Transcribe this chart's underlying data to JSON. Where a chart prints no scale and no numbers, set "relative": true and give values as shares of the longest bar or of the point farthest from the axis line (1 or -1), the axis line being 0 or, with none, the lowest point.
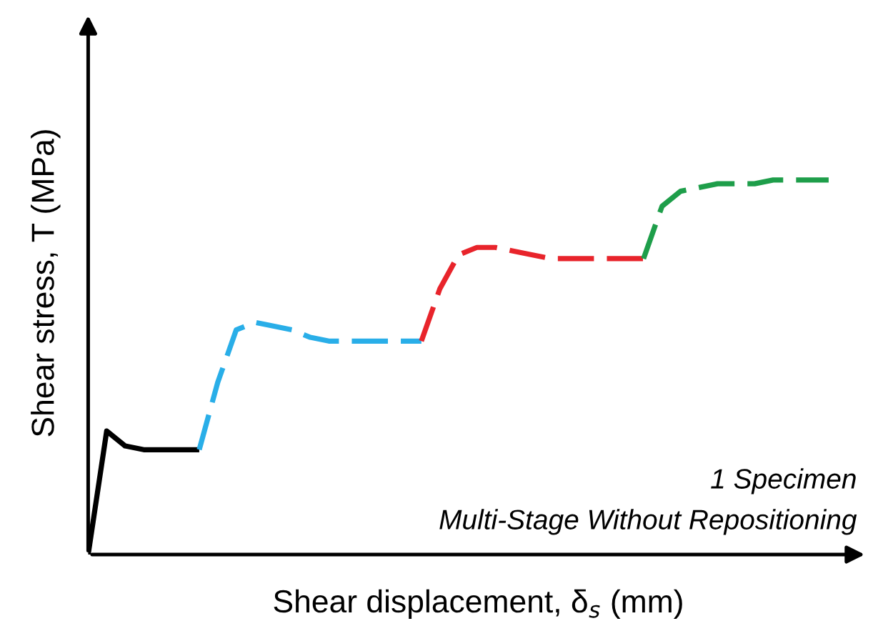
{
  "chart_data": {
    "type": "line",
    "relative": true,
    "xlabel": "Shear displacement, δ$_{s}$ (mm)",
    "ylabel": "Shear stress, T (MPa)",
    "annotations": [
      "1 Specimen",
      "Multi-Stage Without Repositioning"
    ],
    "marker": "none",
    "categories": [
      null,
      null,
      null,
      null,
      null,
      null,
      null,
      null,
      null,
      null,
      null,
      null,
      null,
      null,
      null,
      null,
      null,
      null,
      null,
      null,
      null,
      null,
      null,
      null,
      null,
      null,
      null,
      null,
      null,
      null,
      null,
      null,
      null,
      null,
      null,
      null,
      null,
      null,
      null,
      null,
      null
    ],
    "series": [
      {
        "color": "#000000",
        "line_style": "solid",
        "values": [
          0,
          0.33,
          0.29,
          0.28,
          0.28,
          0.28,
          0.28,
          null,
          null,
          null,
          null,
          null,
          null,
          null,
          null,
          null,
          null,
          null,
          null,
          null,
          null,
          null,
          null,
          null,
          null,
          null,
          null,
          null,
          null,
          null,
          null,
          null,
          null,
          null,
          null,
          null,
          null,
          null,
          null,
          null,
          null
        ]
      },
      {
        "color": "#29aee8",
        "line_style": "dashed",
        "values": [
          null,
          null,
          null,
          null,
          null,
          null,
          0.28,
          0.46,
          0.6,
          0.62,
          0.61,
          0.6,
          0.58,
          0.57,
          0.57,
          0.57,
          0.57,
          0.57,
          0.57,
          null,
          null,
          null,
          null,
          null,
          null,
          null,
          null,
          null,
          null,
          null,
          null,
          null,
          null,
          null,
          null,
          null,
          null,
          null,
          null,
          null,
          null
        ]
      },
      {
        "color": "#e8242b",
        "line_style": "dashed",
        "values": [
          null,
          null,
          null,
          null,
          null,
          null,
          null,
          null,
          null,
          null,
          null,
          null,
          null,
          null,
          null,
          null,
          null,
          null,
          0.57,
          0.71,
          0.8,
          0.82,
          0.82,
          0.81,
          0.8,
          0.79,
          0.79,
          0.79,
          0.79,
          0.79,
          0.79,
          null,
          null,
          null,
          null,
          null,
          null,
          null,
          null,
          null,
          null
        ]
      },
      {
        "color": "#1e9e4a",
        "line_style": "dashed",
        "values": [
          null,
          null,
          null,
          null,
          null,
          null,
          null,
          null,
          null,
          null,
          null,
          null,
          null,
          null,
          null,
          null,
          null,
          null,
          null,
          null,
          null,
          null,
          null,
          null,
          null,
          null,
          null,
          null,
          null,
          null,
          0.79,
          0.93,
          0.97,
          0.98,
          0.99,
          0.99,
          0.99,
          1.0,
          1.0,
          1.0,
          1.0
        ]
      }
    ]
  }
}
